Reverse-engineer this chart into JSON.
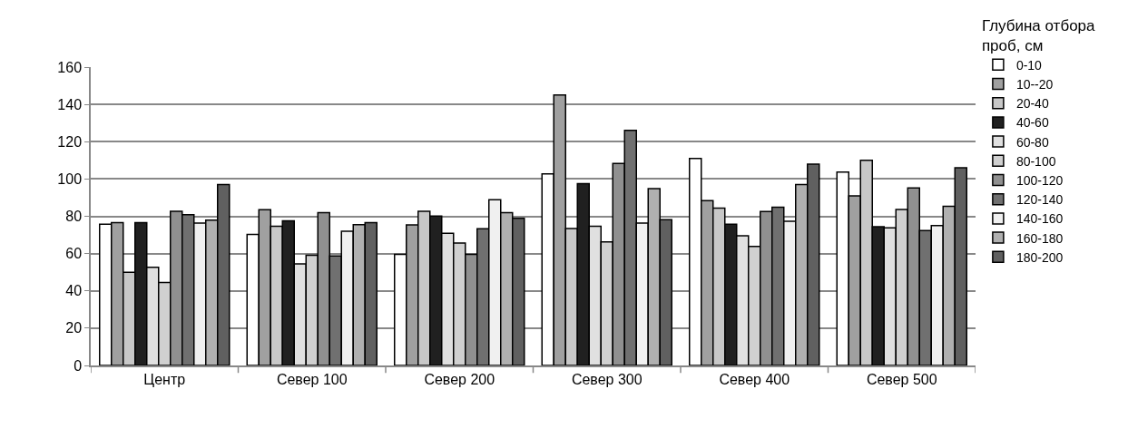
{
  "chart_data": {
    "type": "bar",
    "legend_title": "Глубина отбора проб, см",
    "categories": [
      "Центр",
      "Север 100",
      "Север 200",
      "Север 300",
      "Север 400",
      "Север 500"
    ],
    "series": [
      {
        "name": "0-10",
        "color": "#ffffff",
        "values": [
          75.7,
          70.3,
          59.6,
          102.7,
          111,
          103.7
        ]
      },
      {
        "name": "10--20",
        "color": "#a0a0a0",
        "values": [
          76.6,
          83.5,
          75.4,
          145,
          88.4,
          91
        ]
      },
      {
        "name": "20-40",
        "color": "#c8c8c8",
        "values": [
          50,
          74.7,
          82.7,
          73.4,
          84.4,
          110
        ]
      },
      {
        "name": "40-60",
        "color": "#202020",
        "values": [
          76.6,
          77.6,
          80.1,
          97.5,
          75.8,
          74.4
        ]
      },
      {
        "name": "60-80",
        "color": "#e0e0e0",
        "values": [
          52.6,
          54.5,
          70.9,
          74.7,
          69.6,
          73.8
        ]
      },
      {
        "name": "80-100",
        "color": "#d0d0d0",
        "values": [
          44.5,
          59.1,
          65.7,
          66.3,
          63.8,
          83.6
        ]
      },
      {
        "name": "100-120",
        "color": "#909090",
        "values": [
          82.7,
          81.9,
          59.6,
          108.3,
          82.5,
          95.2
        ]
      },
      {
        "name": "120-140",
        "color": "#707070",
        "values": [
          80.8,
          58.7,
          73.3,
          126.1,
          84.9,
          72.3
        ]
      },
      {
        "name": "140-160",
        "color": "#f0f0f0",
        "values": [
          76.3,
          72,
          88.9,
          76.3,
          77.3,
          75
        ]
      },
      {
        "name": "160-180",
        "color": "#b0b0b0",
        "values": [
          77.9,
          75.5,
          81.9,
          94.8,
          97,
          85.4
        ]
      },
      {
        "name": "180-200",
        "color": "#606060",
        "values": [
          97,
          76.6,
          78.9,
          78.2,
          108,
          106
        ]
      }
    ],
    "ylim": [
      0,
      160
    ],
    "yticks": [
      0,
      20,
      40,
      60,
      80,
      100,
      120,
      140,
      160
    ],
    "grid": "y",
    "legend": "right"
  }
}
